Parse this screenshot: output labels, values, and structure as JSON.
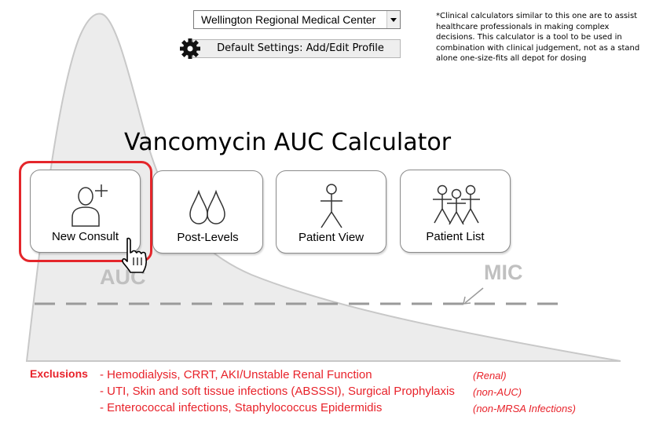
{
  "header": {
    "facility_select": "Wellington Regional Medical Center",
    "settings_button": "Default Settings: Add/Edit Profile",
    "disclaimer": "*Clinical calculators similar to this one are to assist healthcare professionals in making complex decisions. This calculator is a tool to be used in combination with clinical judgement, not as a stand alone one-size-fits all depot for dosing"
  },
  "title": "Vancomycin AUC Calculator",
  "tiles": [
    {
      "label": "New Consult",
      "icon": "add-user-icon"
    },
    {
      "label": "Post-Levels",
      "icon": "drops-icon"
    },
    {
      "label": "Patient View",
      "icon": "stick-figure-icon"
    },
    {
      "label": "Patient List",
      "icon": "group-icon"
    }
  ],
  "background": {
    "auc_label": "AUC",
    "mic_label": "MIC"
  },
  "exclusions": {
    "label": "Exclusions",
    "items": [
      {
        "text": "- Hemodialysis, CRRT, AKI/Unstable Renal Function",
        "category": "(Renal)"
      },
      {
        "text": "- UTI, Skin and soft tissue infections (ABSSSI), Surgical Prophylaxis",
        "category": "(non-AUC)"
      },
      {
        "text": "- Enterococcal infections, Staphylococcus Epidermidis",
        "category": "(non-MRSA Infections)"
      }
    ]
  },
  "colors": {
    "accent_red": "#e4262b",
    "curve_fill": "#ececec"
  }
}
